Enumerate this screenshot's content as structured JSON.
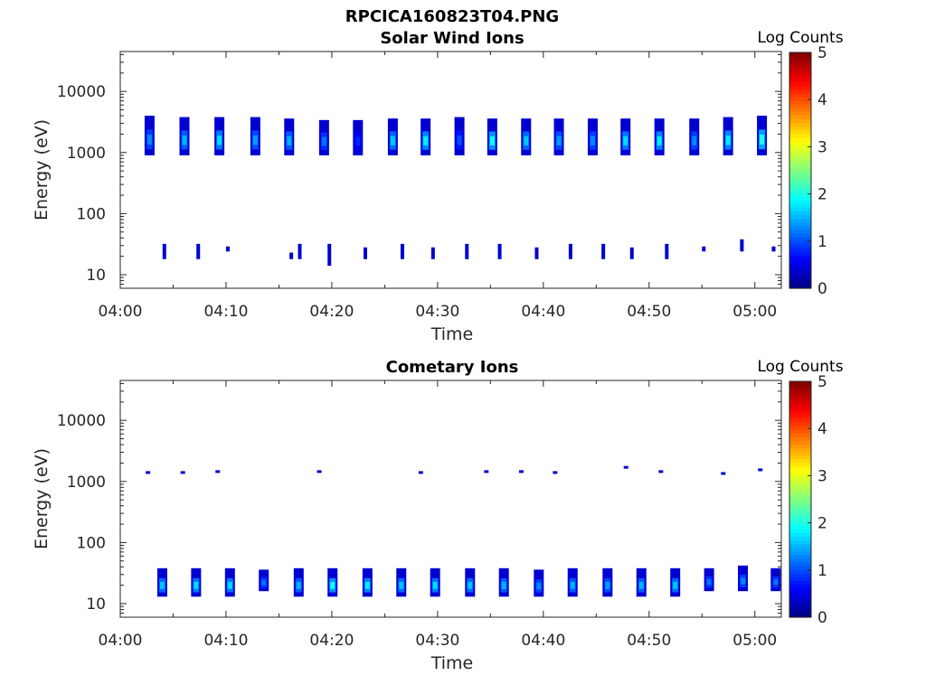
{
  "figure_title": "RPCICA160823T04.PNG",
  "colors": {
    "background": "#ffffff",
    "axis": "#262626",
    "colormap": "jet"
  },
  "chart_data": [
    {
      "type": "heatmap",
      "title": "Solar Wind Ions",
      "xlabel": "Time",
      "ylabel": "Energy (eV)",
      "x_ticks": [
        "04:00",
        "04:10",
        "04:20",
        "04:30",
        "04:40",
        "04:50",
        "05:00"
      ],
      "y_ticks": [
        "10",
        "100",
        "1000",
        "10000"
      ],
      "y_scale": "log",
      "ylim": [
        6,
        45000
      ],
      "xlim_minutes": [
        0,
        62.5
      ],
      "colorbar": {
        "label": "Log Counts",
        "range": [
          0,
          5
        ],
        "ticks": [
          "0",
          "1",
          "2",
          "3",
          "4",
          "5"
        ]
      },
      "blocks": [
        {
          "t": 2.3,
          "emin": 900,
          "emax": 4000,
          "level": 1.3
        },
        {
          "t": 5.6,
          "emin": 900,
          "emax": 3800,
          "level": 1.5
        },
        {
          "t": 8.9,
          "emin": 900,
          "emax": 3800,
          "level": 1.7
        },
        {
          "t": 12.3,
          "emin": 900,
          "emax": 3800,
          "level": 1.4
        },
        {
          "t": 15.5,
          "emin": 900,
          "emax": 3600,
          "level": 1.5
        },
        {
          "t": 18.8,
          "emin": 900,
          "emax": 3400,
          "level": 1.2
        },
        {
          "t": 22.0,
          "emin": 900,
          "emax": 3400,
          "level": 0.8
        },
        {
          "t": 25.3,
          "emin": 900,
          "emax": 3600,
          "level": 1.6
        },
        {
          "t": 28.4,
          "emin": 900,
          "emax": 3600,
          "level": 1.8
        },
        {
          "t": 31.6,
          "emin": 900,
          "emax": 3800,
          "level": 1.0
        },
        {
          "t": 34.7,
          "emin": 900,
          "emax": 3600,
          "level": 1.9
        },
        {
          "t": 37.9,
          "emin": 900,
          "emax": 3600,
          "level": 1.6
        },
        {
          "t": 41.0,
          "emin": 900,
          "emax": 3600,
          "level": 1.4
        },
        {
          "t": 44.2,
          "emin": 900,
          "emax": 3600,
          "level": 1.3
        },
        {
          "t": 47.3,
          "emin": 900,
          "emax": 3600,
          "level": 1.7
        },
        {
          "t": 50.5,
          "emin": 900,
          "emax": 3600,
          "level": 1.8
        },
        {
          "t": 53.8,
          "emin": 900,
          "emax": 3600,
          "level": 1.3
        },
        {
          "t": 57.0,
          "emin": 900,
          "emax": 3800,
          "level": 1.8
        },
        {
          "t": 60.2,
          "emin": 900,
          "emax": 4000,
          "level": 2.0
        }
      ],
      "low_energy_blips": [
        {
          "t": 4.0,
          "emin": 18,
          "emax": 32
        },
        {
          "t": 7.2,
          "emin": 18,
          "emax": 32
        },
        {
          "t": 10.0,
          "emin": 24,
          "emax": 29
        },
        {
          "t": 16.0,
          "emin": 18,
          "emax": 23
        },
        {
          "t": 16.8,
          "emin": 18,
          "emax": 32
        },
        {
          "t": 19.6,
          "emin": 14,
          "emax": 32
        },
        {
          "t": 23.0,
          "emin": 18,
          "emax": 28
        },
        {
          "t": 26.5,
          "emin": 18,
          "emax": 32
        },
        {
          "t": 29.4,
          "emin": 18,
          "emax": 28
        },
        {
          "t": 32.6,
          "emin": 18,
          "emax": 32
        },
        {
          "t": 35.7,
          "emin": 18,
          "emax": 32
        },
        {
          "t": 39.2,
          "emin": 18,
          "emax": 28
        },
        {
          "t": 42.4,
          "emin": 18,
          "emax": 32
        },
        {
          "t": 45.5,
          "emin": 18,
          "emax": 32
        },
        {
          "t": 48.2,
          "emin": 18,
          "emax": 28
        },
        {
          "t": 51.5,
          "emin": 18,
          "emax": 32
        },
        {
          "t": 55.0,
          "emin": 24,
          "emax": 29
        },
        {
          "t": 58.6,
          "emin": 24,
          "emax": 38
        },
        {
          "t": 61.6,
          "emin": 24,
          "emax": 29
        }
      ]
    },
    {
      "type": "heatmap",
      "title": "Cometary Ions",
      "xlabel": "Time",
      "ylabel": "Energy (eV)",
      "x_ticks": [
        "04:00",
        "04:10",
        "04:20",
        "04:30",
        "04:40",
        "04:50",
        "05:00"
      ],
      "y_ticks": [
        "10",
        "100",
        "1000",
        "10000"
      ],
      "y_scale": "log",
      "ylim": [
        6,
        45000
      ],
      "xlim_minutes": [
        0,
        62.5
      ],
      "colorbar": {
        "label": "Log Counts",
        "range": [
          0,
          5
        ],
        "ticks": [
          "0",
          "1",
          "2",
          "3",
          "4",
          "5"
        ]
      },
      "blocks": [
        {
          "t": 3.5,
          "emin": 13,
          "emax": 38,
          "level": 1.6
        },
        {
          "t": 6.7,
          "emin": 13,
          "emax": 38,
          "level": 1.7
        },
        {
          "t": 9.9,
          "emin": 13,
          "emax": 38,
          "level": 1.7
        },
        {
          "t": 13.1,
          "emin": 16,
          "emax": 36,
          "level": 1.2
        },
        {
          "t": 16.4,
          "emin": 13,
          "emax": 38,
          "level": 1.5
        },
        {
          "t": 19.6,
          "emin": 13,
          "emax": 38,
          "level": 1.9
        },
        {
          "t": 22.9,
          "emin": 13,
          "emax": 38,
          "level": 1.8
        },
        {
          "t": 26.1,
          "emin": 13,
          "emax": 38,
          "level": 1.6
        },
        {
          "t": 29.3,
          "emin": 13,
          "emax": 38,
          "level": 1.7
        },
        {
          "t": 32.6,
          "emin": 13,
          "emax": 38,
          "level": 1.6
        },
        {
          "t": 35.8,
          "emin": 13,
          "emax": 38,
          "level": 1.5
        },
        {
          "t": 39.1,
          "emin": 13,
          "emax": 36,
          "level": 1.3
        },
        {
          "t": 42.3,
          "emin": 13,
          "emax": 38,
          "level": 1.5
        },
        {
          "t": 45.6,
          "emin": 13,
          "emax": 38,
          "level": 1.4
        },
        {
          "t": 48.8,
          "emin": 13,
          "emax": 38,
          "level": 1.5
        },
        {
          "t": 52.0,
          "emin": 13,
          "emax": 38,
          "level": 1.6
        },
        {
          "t": 55.2,
          "emin": 16,
          "emax": 38,
          "level": 1.2
        },
        {
          "t": 58.4,
          "emin": 16,
          "emax": 42,
          "level": 1.3
        },
        {
          "t": 61.5,
          "emin": 16,
          "emax": 38,
          "level": 1.2
        }
      ],
      "high_energy_blips": [
        {
          "t": 2.4,
          "energy": 1400
        },
        {
          "t": 5.7,
          "energy": 1400
        },
        {
          "t": 9.0,
          "energy": 1450
        },
        {
          "t": 18.6,
          "energy": 1450
        },
        {
          "t": 28.2,
          "energy": 1400
        },
        {
          "t": 34.4,
          "energy": 1450
        },
        {
          "t": 37.7,
          "energy": 1450
        },
        {
          "t": 40.9,
          "energy": 1400
        },
        {
          "t": 47.6,
          "energy": 1700
        },
        {
          "t": 50.9,
          "energy": 1450
        },
        {
          "t": 56.8,
          "energy": 1350
        },
        {
          "t": 60.3,
          "energy": 1550
        }
      ]
    }
  ]
}
